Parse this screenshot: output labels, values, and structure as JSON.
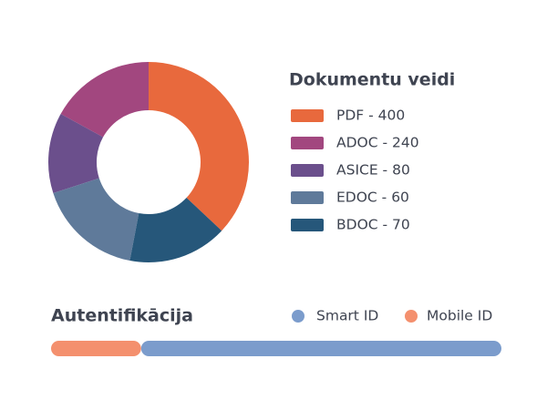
{
  "chart_data": [
    {
      "type": "pie",
      "title": "Dokumentu veidi",
      "categories": [
        "PDF - 400",
        "ADOC - 240",
        "ASICE - 80",
        "EDOC - 60",
        "BDOC - 70"
      ],
      "values": [
        37,
        17,
        13,
        17,
        16
      ],
      "colors": [
        "#e8693d",
        "#a2477f",
        "#6b4f8c",
        "#5f7a9a",
        "#26577a"
      ]
    },
    {
      "type": "bar",
      "title": "Autentifikācija",
      "xlim": [
        0,
        100
      ],
      "series": [
        {
          "name": "Smart ID",
          "color": "#7b9ccc",
          "values": [
            80
          ]
        },
        {
          "name": "Mobile ID",
          "color": "#f4906e",
          "values": [
            20
          ]
        }
      ]
    }
  ]
}
